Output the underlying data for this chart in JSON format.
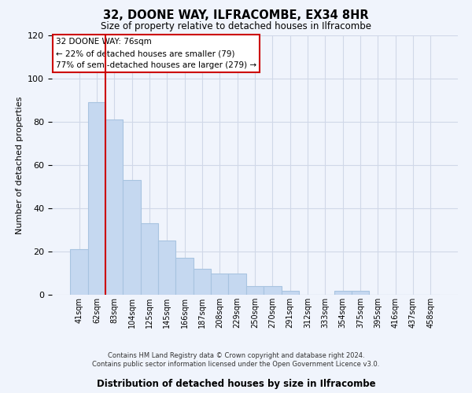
{
  "title": "32, DOONE WAY, ILFRACOMBE, EX34 8HR",
  "subtitle": "Size of property relative to detached houses in Ilfracombe",
  "xlabel": "Distribution of detached houses by size in Ilfracombe",
  "ylabel": "Number of detached properties",
  "bar_values": [
    21,
    89,
    81,
    53,
    33,
    25,
    17,
    12,
    10,
    10,
    4,
    4,
    2,
    0,
    0,
    2,
    2,
    0,
    0,
    0,
    0
  ],
  "bar_categories": [
    "41sqm",
    "62sqm",
    "83sqm",
    "104sqm",
    "125sqm",
    "145sqm",
    "166sqm",
    "187sqm",
    "208sqm",
    "229sqm",
    "250sqm",
    "270sqm",
    "291sqm",
    "312sqm",
    "333sqm",
    "354sqm",
    "375sqm",
    "395sqm",
    "416sqm",
    "437sqm",
    "458sqm"
  ],
  "bar_color": "#c5d8f0",
  "bar_edge_color": "#a8c4e0",
  "vline_x": 1.5,
  "vline_color": "#cc0000",
  "annotation_line1": "32 DOONE WAY: 76sqm",
  "annotation_line2": "← 22% of detached houses are smaller (79)",
  "annotation_line3": "77% of semi-detached houses are larger (279) →",
  "annotation_box_color": "#ffffff",
  "annotation_box_edgecolor": "#cc0000",
  "ylim": [
    0,
    120
  ],
  "yticks": [
    0,
    20,
    40,
    60,
    80,
    100,
    120
  ],
  "footer_line1": "Contains HM Land Registry data © Crown copyright and database right 2024.",
  "footer_line2": "Contains public sector information licensed under the Open Government Licence v3.0.",
  "grid_color": "#d0d8e8",
  "bg_color": "#f0f4fc"
}
